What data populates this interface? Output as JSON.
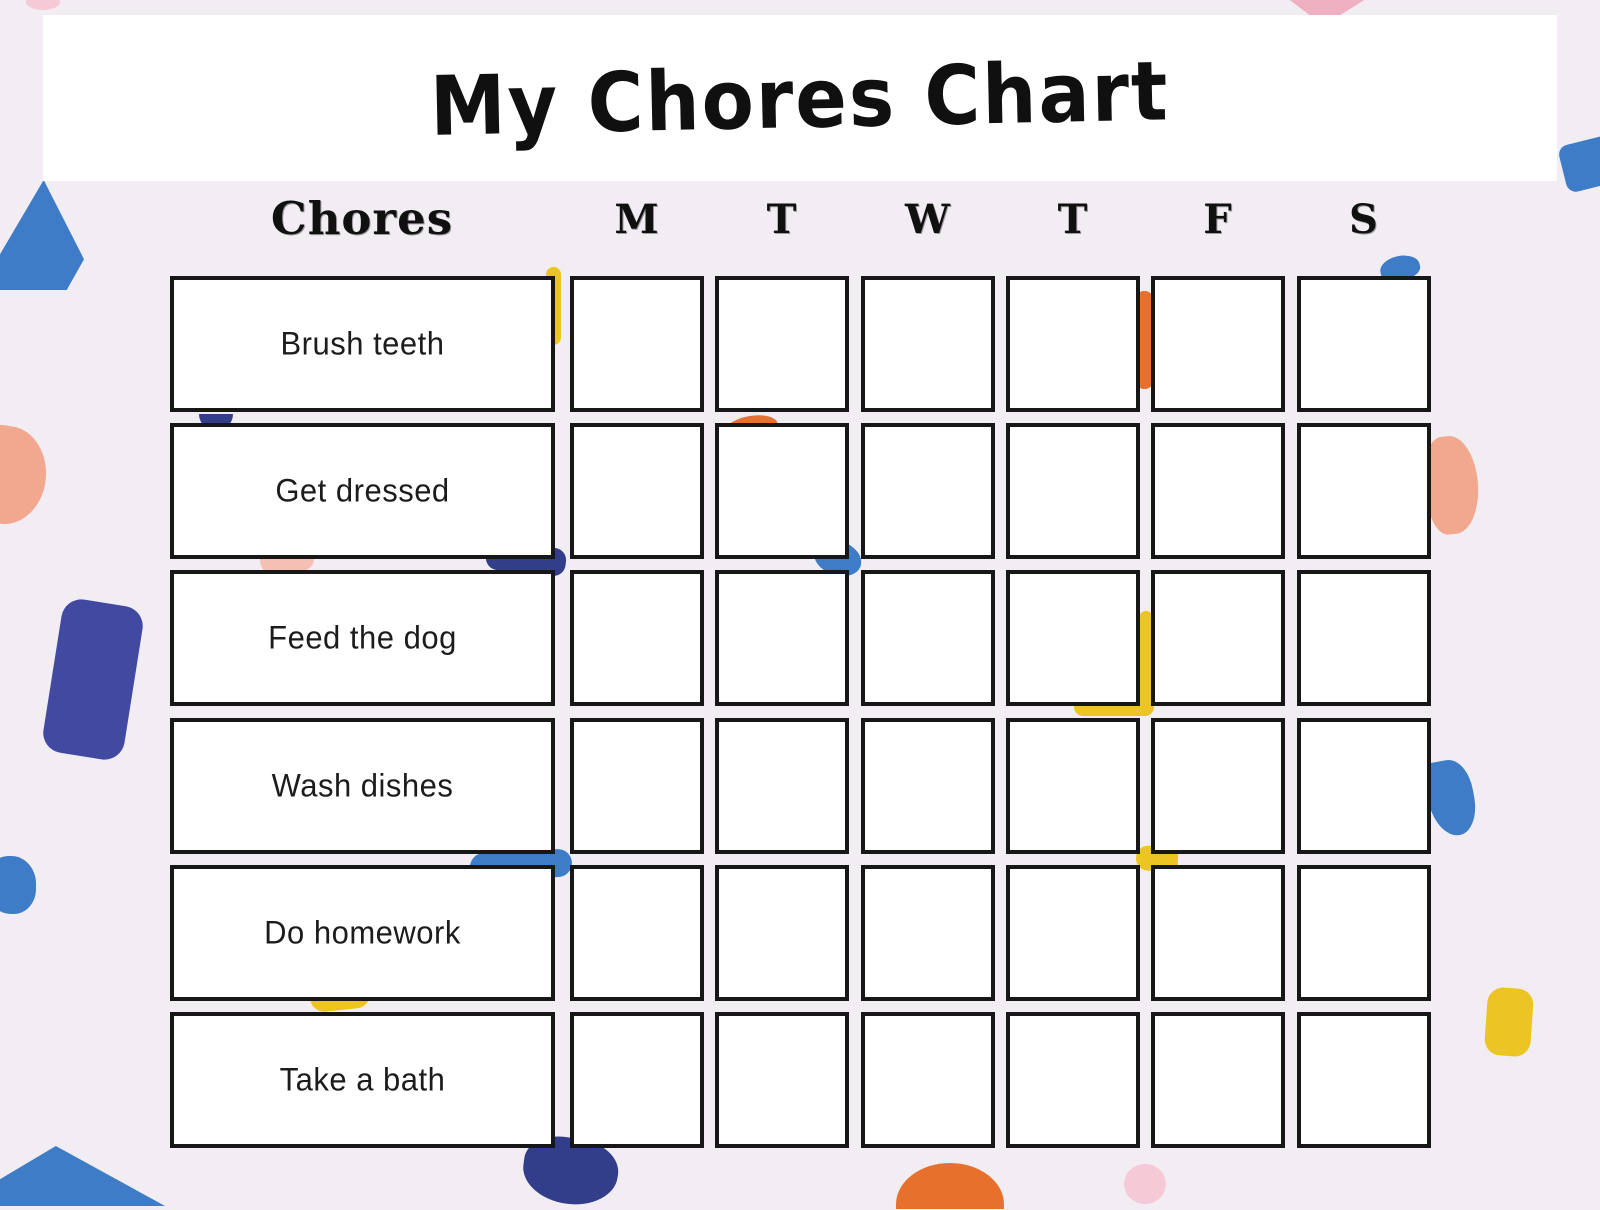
{
  "title": "My Chores Chart",
  "table": {
    "chores_header": "Chores",
    "day_headers": [
      "M",
      "T",
      "W",
      "T",
      "F",
      "S"
    ],
    "chores": [
      "Brush teeth",
      "Get dressed",
      "Feed the dog",
      "Wash dishes",
      "Do homework",
      "Take a bath"
    ]
  },
  "colors": {
    "background": "#f1edf3",
    "banner": "#ffffff",
    "cell_fill": "#ffffff",
    "cell_border": "#171717",
    "heading_text": "#101010",
    "label_text": "#1c1c1c",
    "confetti": {
      "blue": "#3e7cc7",
      "indigo": "#414aa0",
      "navy": "#333e8b",
      "orange": "#e7712c",
      "salmon": "#f2a78f",
      "salmon_light": "#f5c0b4",
      "pink": "#efb0c2",
      "pink_light": "#f6c9d6",
      "yellow": "#ecc525"
    }
  }
}
